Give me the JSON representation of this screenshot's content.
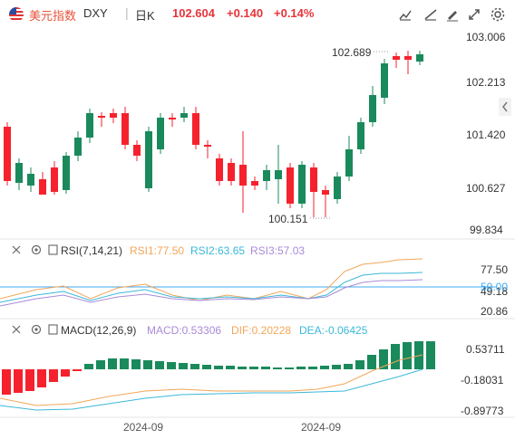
{
  "header": {
    "name": "美元指数",
    "symbol": "DXY",
    "period": "日K",
    "price": "102.604",
    "change": "+0.140",
    "change_pct": "+0.14%"
  },
  "toolbar": {
    "icons": [
      "crosshair-icon",
      "draw-icon",
      "pen-icon",
      "layout-icon",
      "expand-icon",
      "gear-icon"
    ]
  },
  "colors": {
    "up": "#f5222d",
    "down": "#1a8a5c",
    "rsi1": "#f2a65a",
    "rsi2": "#3bb8d8",
    "rsi3": "#a98ad8",
    "dif": "#f2a65a",
    "dea": "#3bb8d8",
    "level": "#3fa9f5"
  },
  "chart_data": [
    {
      "type": "candlestick",
      "y_ticks": [
        "103.006",
        "102.213",
        "101.420",
        "100.627",
        "99.834"
      ],
      "high_label": "102.689",
      "low_label": "100.151",
      "x_labels": [
        "2024-09",
        "2024-09"
      ]
    },
    {
      "type": "line",
      "indicator": "RSI(7,14,21)",
      "labels": {
        "rsi1": "RSI1:77.50",
        "rsi2": "RSI2:63.65",
        "rsi3": "RSI3:57.03"
      },
      "y_ticks": [
        "77.50",
        "49.18",
        "20.86"
      ],
      "level_label": "50.00"
    },
    {
      "type": "bar",
      "indicator": "MACD(12,26,9)",
      "labels": {
        "macd": "MACD:0.53306",
        "dif": "DIF:0.20228",
        "dea": "DEA:-0.06425"
      },
      "y_ticks": [
        "0.53711",
        "-0.18031",
        "-0.89773"
      ]
    }
  ]
}
